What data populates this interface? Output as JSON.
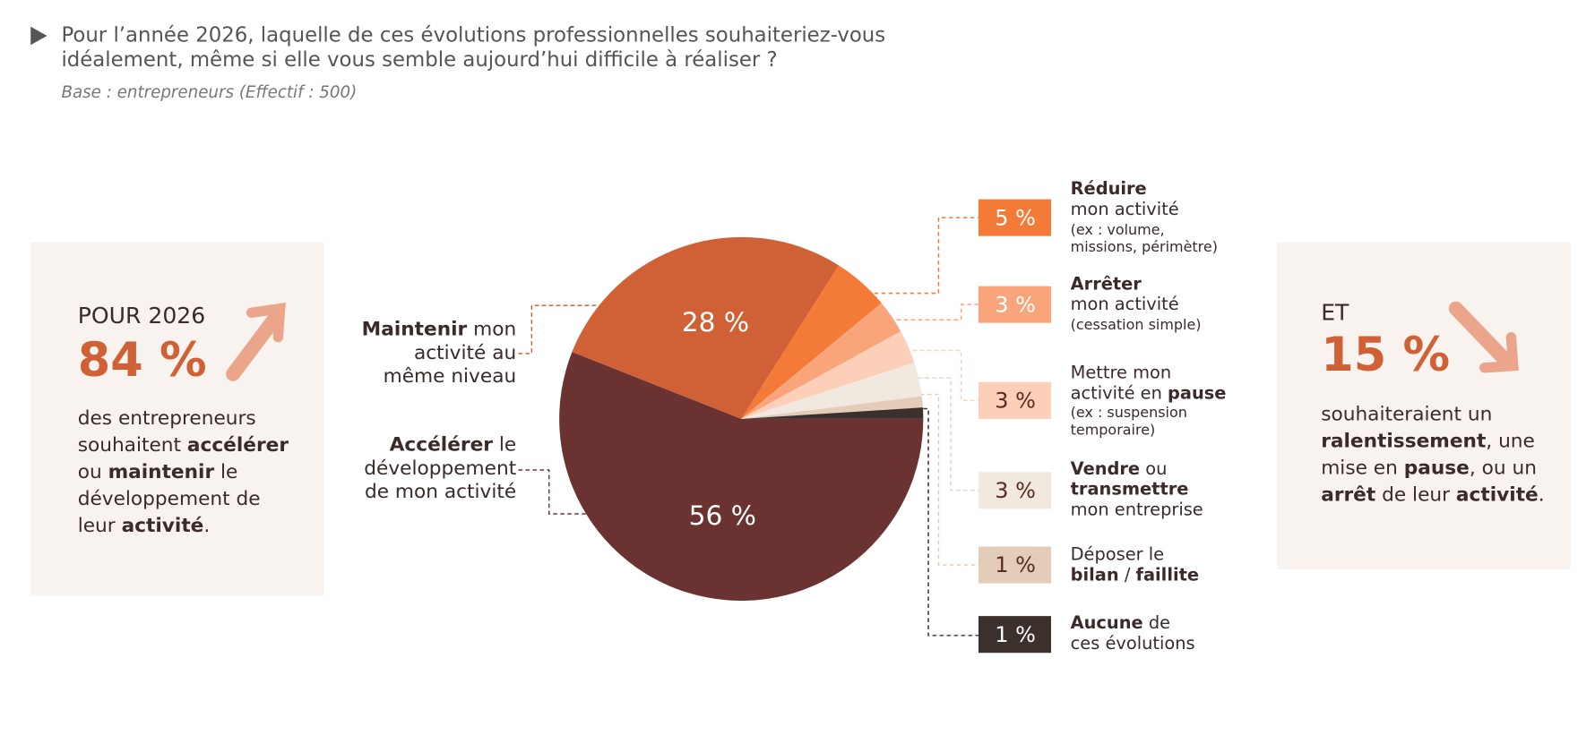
{
  "chart_data": {
    "type": "pie",
    "title": [
      "Pour l’année 2026, laquelle de ces évolutions professionnelles souhaiteriez-vous",
      "idéalement, même si elle vous semble aujourd’hui difficile à réaliser ?"
    ],
    "subtitle": "Base : entrepreneurs (Effectif : 500)",
    "categories": [
      [
        [
          {
            "text": "Accélérer",
            "bold": true
          },
          {
            "text": " le"
          }
        ],
        [
          {
            "text": "développement"
          }
        ],
        [
          {
            "text": "de mon activité"
          }
        ]
      ],
      [
        [
          {
            "text": "Maintenir",
            "bold": true
          },
          {
            "text": " mon"
          }
        ],
        [
          {
            "text": "activité au"
          }
        ],
        [
          {
            "text": "même niveau"
          }
        ]
      ],
      [
        [
          {
            "text": "Réduire",
            "bold": true
          }
        ],
        [
          {
            "text": "mon activité"
          }
        ],
        [
          {
            "text": "(ex : volume,",
            "small": true
          }
        ],
        [
          {
            "text": "missions, périmètre)",
            "small": true
          }
        ]
      ],
      [
        [
          {
            "text": "Arrêter",
            "bold": true
          }
        ],
        [
          {
            "text": "mon activité"
          }
        ],
        [
          {
            "text": "(cessation simple)",
            "small": true
          }
        ]
      ],
      [
        [
          {
            "text": "Mettre mon"
          }
        ],
        [
          {
            "text": "activité en "
          },
          {
            "text": "pause",
            "bold": true
          }
        ],
        [
          {
            "text": "(ex : suspension",
            "small": true
          }
        ],
        [
          {
            "text": "temporaire)",
            "small": true
          }
        ]
      ],
      [
        [
          {
            "text": "Vendre",
            "bold": true
          },
          {
            "text": " ou"
          }
        ],
        [
          {
            "text": "transmettre",
            "bold": true
          }
        ],
        [
          {
            "text": "mon entreprise"
          }
        ]
      ],
      [
        [
          {
            "text": "Déposer le"
          }
        ],
        [
          {
            "text": "bilan",
            "bold": true
          },
          {
            "text": " / "
          },
          {
            "text": "faillite",
            "bold": true
          }
        ]
      ],
      [
        [
          {
            "text": "Aucune",
            "bold": true
          },
          {
            "text": " de"
          }
        ],
        [
          {
            "text": "ces évolutions"
          }
        ]
      ]
    ],
    "values": [
      56,
      28,
      5,
      3,
      3,
      3,
      1,
      1
    ],
    "value_labels": [
      "56 %",
      "28 %",
      "5 %",
      "3 %",
      "3 %",
      "3 %",
      "1 %",
      "1 %"
    ],
    "colors": [
      "#6b3232",
      "#d06035",
      "#f47a38",
      "#f9a47a",
      "#fcd0b8",
      "#f1e8e0",
      "#e3cdb8",
      "#3b302c"
    ]
  },
  "callouts": [
    {
      "heading": "POUR 2026",
      "figure": "84 %",
      "body": [
        [
          {
            "text": "des entrepreneurs"
          }
        ],
        [
          {
            "text": "souhaitent "
          },
          {
            "text": "accélérer",
            "bold": true
          }
        ],
        [
          {
            "text": "ou "
          },
          {
            "text": "maintenir",
            "bold": true
          },
          {
            "text": " le"
          }
        ],
        [
          {
            "text": "développement de"
          }
        ],
        [
          {
            "text": "leur "
          },
          {
            "text": "activité",
            "bold": true
          },
          {
            "text": "."
          }
        ]
      ]
    },
    {
      "heading": "ET",
      "figure": "15 %",
      "body": [
        [
          {
            "text": "souhaiteraient un"
          }
        ],
        [
          {
            "text": "ralentissement",
            "bold": true
          },
          {
            "text": ", une"
          }
        ],
        [
          {
            "text": "mise en "
          },
          {
            "text": "pause",
            "bold": true
          },
          {
            "text": ", ou un"
          }
        ],
        [
          {
            "text": "arrêt",
            "bold": true
          },
          {
            "text": " de leur "
          },
          {
            "text": "activité",
            "bold": true
          },
          {
            "text": "."
          }
        ]
      ]
    }
  ]
}
